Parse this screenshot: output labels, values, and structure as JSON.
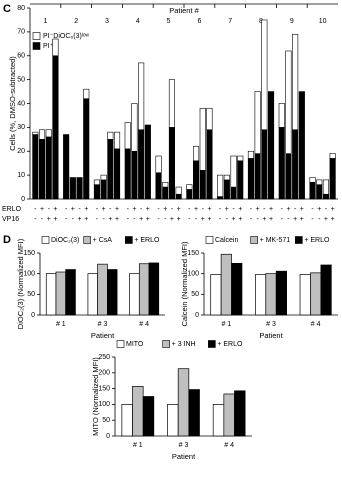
{
  "panel_labels": [
    "C",
    "D"
  ],
  "chart_data": [
    {
      "type": "stacked_bar",
      "y_label": "Cells (%, DMSO-subtracted)",
      "x_label": "Patient #",
      "groups": [
        "1",
        "2",
        "3",
        "4",
        "5",
        "6",
        "7",
        "8",
        "9",
        "10"
      ],
      "conditions": [
        {
          "name": "ERLO",
          "signs": [
            "-",
            "+",
            "-",
            "+",
            "-",
            "+",
            "-",
            "+",
            "-",
            "+",
            "-",
            "+",
            "-",
            "+",
            "-",
            "+",
            "-",
            "+",
            "-",
            "+",
            "-",
            "+",
            "-",
            "+",
            "-",
            "+",
            "-",
            "+",
            "-",
            "+",
            "-",
            "+",
            "-",
            "+",
            "-",
            "+",
            "-",
            "+",
            "-",
            "+"
          ]
        },
        {
          "name": "VP16",
          "signs": [
            "-",
            "-",
            "+",
            "+",
            "-",
            "-",
            "+",
            "+",
            "-",
            "-",
            "+",
            "+",
            "-",
            "-",
            "+",
            "+",
            "-",
            "-",
            "+",
            "+",
            "-",
            "-",
            "+",
            "+",
            "-",
            "-",
            "+",
            "+",
            "-",
            "-",
            "+",
            "+",
            "-",
            "-",
            "+",
            "+",
            "-",
            "-",
            "+",
            "+"
          ]
        }
      ],
      "series": [
        {
          "name": "PI⁻DiOC₆(3)ˡᵒʷ",
          "color": "#ffffff",
          "values": [
            1,
            4,
            3,
            7,
            0,
            0,
            0,
            4,
            2,
            2,
            3,
            7,
            11,
            20,
            28,
            0,
            7,
            2,
            20,
            3,
            2,
            6,
            26,
            9,
            9,
            2,
            13,
            2,
            3,
            26,
            46,
            0,
            10,
            43,
            40,
            0,
            2,
            2,
            6,
            2
          ]
        },
        {
          "name": "PI⁺",
          "color": "#000000",
          "values": [
            27,
            25,
            26,
            60,
            27,
            9,
            9,
            42,
            6,
            8,
            25,
            21,
            21,
            20,
            29,
            31,
            11,
            5,
            30,
            2,
            4,
            16,
            12,
            29,
            1,
            8,
            5,
            16,
            17,
            19,
            29,
            45,
            30,
            19,
            29,
            45,
            7,
            6,
            2,
            17
          ]
        }
      ],
      "ylim": [
        0,
        80
      ],
      "yticks": [
        0,
        10,
        20,
        30,
        40,
        50,
        60,
        70,
        80
      ],
      "legend": "top-left"
    },
    {
      "type": "bar",
      "y_label": "DiOC₂(3) (Normalized MFI)",
      "x_label": "Patient",
      "categories": [
        "# 1",
        "# 3",
        "# 4"
      ],
      "series": [
        {
          "name": "DiOC₂(3)",
          "color": "#ffffff",
          "values": [
            100,
            100,
            100
          ]
        },
        {
          "name": "+ CsA",
          "color": "#bfbfbf",
          "values": [
            104,
            123,
            124
          ]
        },
        {
          "name": "+ ERLO",
          "color": "#000000",
          "values": [
            110,
            110,
            126
          ]
        }
      ],
      "ylim": [
        0,
        150
      ],
      "yticks": [
        0,
        50,
        100,
        150
      ],
      "legend": "top"
    },
    {
      "type": "bar",
      "y_label": "Calcein (Normalized MFI)",
      "x_label": "Patient",
      "categories": [
        "# 1",
        "# 3",
        "# 4"
      ],
      "series": [
        {
          "name": "Calcein",
          "color": "#ffffff",
          "values": [
            98,
            98,
            98
          ]
        },
        {
          "name": "+ MK-571",
          "color": "#bfbfbf",
          "values": [
            147,
            100,
            102
          ]
        },
        {
          "name": "+ ERLO",
          "color": "#000000",
          "values": [
            125,
            106,
            121
          ]
        }
      ],
      "ylim": [
        0,
        150
      ],
      "yticks": [
        0,
        50,
        100,
        150
      ],
      "legend": "top"
    },
    {
      "type": "bar",
      "y_label": "MITO (Normalized MFI)",
      "x_label": "Patient",
      "categories": [
        "# 1",
        "# 3",
        "# 4"
      ],
      "series": [
        {
          "name": "MITO",
          "color": "#ffffff",
          "values": [
            100,
            100,
            100
          ]
        },
        {
          "name": "+ 3 INH",
          "color": "#bfbfbf",
          "values": [
            157,
            213,
            133
          ]
        },
        {
          "name": "+ ERLO",
          "color": "#000000",
          "values": [
            125,
            147,
            143
          ]
        }
      ],
      "ylim": [
        0,
        250
      ],
      "yticks": [
        0,
        50,
        100,
        150,
        200,
        250
      ],
      "legend": "top"
    }
  ]
}
